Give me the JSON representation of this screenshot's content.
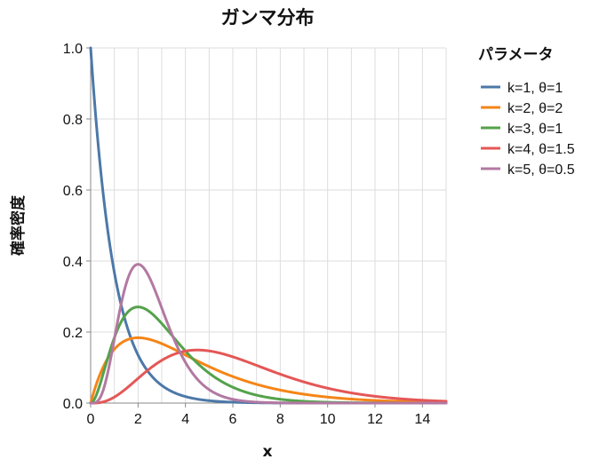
{
  "chart_data": {
    "type": "line",
    "title": "ガンマ分布",
    "xlabel": "x",
    "ylabel": "確率密度",
    "xlim": [
      0,
      15
    ],
    "ylim": [
      0,
      1.0
    ],
    "x_ticks": [
      "0",
      "2",
      "4",
      "6",
      "8",
      "10",
      "12",
      "14"
    ],
    "y_ticks": [
      "0.0",
      "0.2",
      "0.4",
      "0.6",
      "0.8",
      "1.0"
    ],
    "grid": true,
    "legend": {
      "title": "パラメータ",
      "placement": "right"
    },
    "series": [
      {
        "name": "k=1,  θ=1",
        "k": 1,
        "theta": 1,
        "color": "#4c78a8"
      },
      {
        "name": "k=2,  θ=2",
        "k": 2,
        "theta": 2,
        "color": "#f58518"
      },
      {
        "name": "k=3,  θ=1",
        "k": 3,
        "theta": 1,
        "color": "#54a24b"
      },
      {
        "name": "k=4,  θ=1.5",
        "k": 4,
        "theta": 1.5,
        "color": "#e45756"
      },
      {
        "name": "k=5,  θ=0.5",
        "k": 5,
        "theta": 0.5,
        "color": "#b279a2"
      }
    ]
  }
}
